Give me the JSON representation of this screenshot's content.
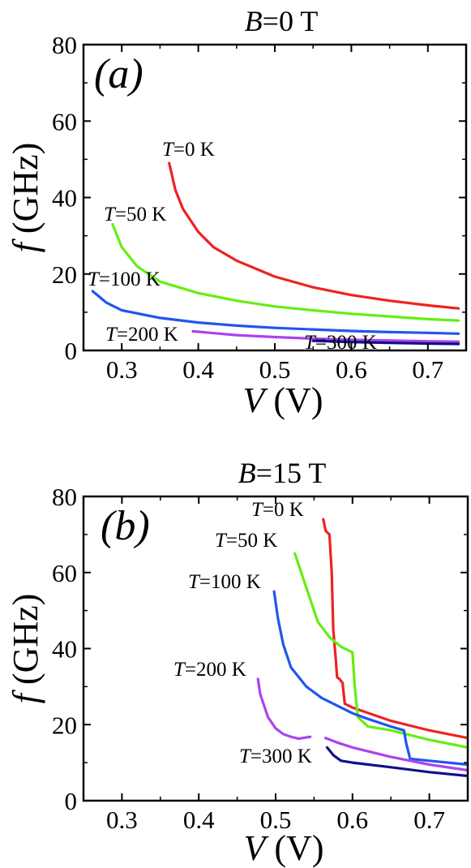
{
  "chart_data": [
    {
      "type": "line",
      "title": "B=0 T",
      "title_italic": "B",
      "title_rest": "=0 T",
      "panel_label": "(a)",
      "xlabel": "V",
      "xlabel_unit": "(V)",
      "ylabel": "f",
      "ylabel_unit": "(GHz)",
      "xlim": [
        0.25,
        0.75
      ],
      "ylim": [
        0,
        80
      ],
      "xticks": [
        "0.3",
        "0.4",
        "0.5",
        "0.6",
        "0.7"
      ],
      "yticks": [
        "0",
        "20",
        "40",
        "60",
        "80"
      ],
      "series": [
        {
          "name": "T=0 K",
          "label_italic": "T",
          "label_rest": "=0 K",
          "color": "#ee2222",
          "x": [
            0.362,
            0.37,
            0.38,
            0.4,
            0.42,
            0.45,
            0.5,
            0.55,
            0.6,
            0.65,
            0.7,
            0.74
          ],
          "y": [
            49,
            42,
            37,
            31,
            27,
            23.5,
            19.3,
            16.5,
            14.5,
            13,
            11.8,
            11
          ]
        },
        {
          "name": "T=50 K",
          "label_italic": "T",
          "label_rest": "=50 K",
          "color": "#66ee11",
          "x": [
            0.288,
            0.3,
            0.32,
            0.35,
            0.4,
            0.45,
            0.5,
            0.55,
            0.6,
            0.65,
            0.7,
            0.74
          ],
          "y": [
            33,
            27,
            22,
            18,
            15,
            13,
            11.5,
            10.5,
            9.6,
            8.9,
            8.2,
            7.8
          ]
        },
        {
          "name": "T=100 K",
          "label_italic": "T",
          "label_rest": "=100 K",
          "color": "#2255ee",
          "x": [
            0.262,
            0.28,
            0.3,
            0.35,
            0.4,
            0.45,
            0.5,
            0.55,
            0.6,
            0.65,
            0.7,
            0.74
          ],
          "y": [
            15.5,
            12.5,
            10.5,
            8.5,
            7.3,
            6.5,
            5.9,
            5.5,
            5.1,
            4.8,
            4.6,
            4.4
          ]
        },
        {
          "name": "T=200 K",
          "label_italic": "T",
          "label_rest": "=200 K",
          "color": "#aa44ee",
          "x": [
            0.393,
            0.45,
            0.5,
            0.55,
            0.6,
            0.65,
            0.7,
            0.74
          ],
          "y": [
            5.0,
            4.0,
            3.5,
            3.1,
            2.8,
            2.6,
            2.4,
            2.3
          ]
        },
        {
          "name": "T=300 K",
          "label_italic": "T",
          "label_rest": "=300 K",
          "color": "#111188",
          "x": [
            0.55,
            0.6,
            0.65,
            0.7,
            0.74
          ],
          "y": [
            2.5,
            2.2,
            2.0,
            1.8,
            1.7
          ]
        }
      ]
    },
    {
      "type": "line",
      "title": "B=15 T",
      "title_italic": "B",
      "title_rest": "=15 T",
      "panel_label": "(b)",
      "xlabel": "V",
      "xlabel_unit": "(V)",
      "ylabel": "f",
      "ylabel_unit": "(GHz)",
      "xlim": [
        0.25,
        0.75
      ],
      "ylim": [
        0,
        80
      ],
      "xticks": [
        "0.3",
        "0.4",
        "0.5",
        "0.6",
        "0.7"
      ],
      "yticks": [
        "0",
        "20",
        "40",
        "60",
        "80"
      ],
      "series": [
        {
          "name": "T=0 K",
          "label_italic": "T",
          "label_rest": "=0 K",
          "color": "#ee2222",
          "x": [
            0.562,
            0.565,
            0.57,
            0.573,
            0.575,
            0.578,
            0.58,
            0.583,
            0.587,
            0.59,
            0.6,
            0.65,
            0.7,
            0.75
          ],
          "y": [
            74,
            71,
            70,
            60,
            45,
            38,
            32.5,
            32,
            31,
            25.5,
            24.5,
            21,
            18.5,
            16.5
          ]
        },
        {
          "name": "T=50 K",
          "label_italic": "T",
          "label_rest": "=50 K",
          "color": "#66ee11",
          "x": [
            0.525,
            0.54,
            0.55,
            0.555,
            0.57,
            0.585,
            0.6,
            0.603,
            0.607,
            0.62,
            0.65,
            0.7,
            0.75
          ],
          "y": [
            65,
            56,
            50,
            47,
            43,
            40.5,
            39,
            30,
            22,
            19.5,
            18.5,
            16,
            14
          ]
        },
        {
          "name": "T=100 K",
          "label_italic": "T",
          "label_rest": "=100 K",
          "color": "#2255ee",
          "x": [
            0.498,
            0.503,
            0.51,
            0.52,
            0.54,
            0.56,
            0.58,
            0.6,
            0.62,
            0.65,
            0.667,
            0.67,
            0.675,
            0.7,
            0.75
          ],
          "y": [
            55,
            48,
            41,
            35,
            30,
            27,
            25,
            23,
            21.5,
            19.5,
            18.5,
            15,
            11,
            10.5,
            9.5
          ]
        },
        {
          "name": "T=200 K",
          "label_italic": "T",
          "label_rest": "=200 K",
          "color": "#aa44ee",
          "x": [
            0.477,
            0.48,
            0.49,
            0.5,
            0.51,
            0.52,
            0.53,
            0.545
          ],
          "y": [
            32,
            28,
            22,
            19,
            17.5,
            16.8,
            16.3,
            16.8
          ]
        },
        {
          "name": "T=200 K (branch 2)",
          "color": "#aa44ee",
          "x": [
            0.565,
            0.58,
            0.6,
            0.65,
            0.7,
            0.75
          ],
          "y": [
            16.5,
            15.3,
            14,
            11.5,
            9.5,
            8
          ]
        },
        {
          "name": "T=300 K",
          "label_italic": "T",
          "label_rest": "=300 K",
          "color": "#111188",
          "x": [
            0.567,
            0.575,
            0.585,
            0.6,
            0.65,
            0.7,
            0.75
          ],
          "y": [
            14,
            12,
            10.5,
            10,
            8.8,
            7.5,
            6.5
          ]
        }
      ]
    }
  ]
}
